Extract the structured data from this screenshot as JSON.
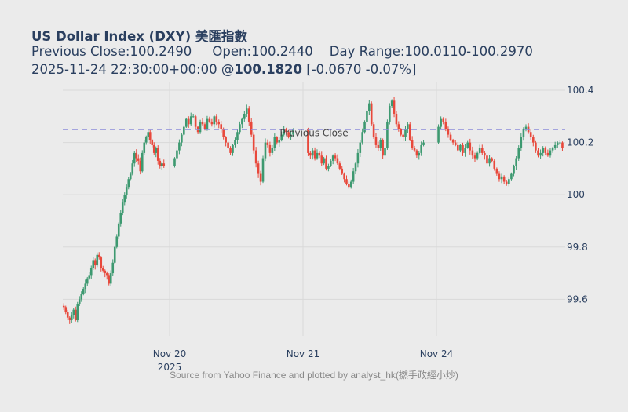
{
  "header": {
    "title": "US Dollar Index (DXY) 美匯指數",
    "stats": "Previous Close:100.2490     Open:100.2440    Day Range:100.0110-100.2970",
    "quote_prefix": "2025-11-24 22:30:00+00:00 @",
    "quote_price": "100.1820",
    "quote_change": " [-0.0670 -0.07%]"
  },
  "chart_data": {
    "type": "candlestick",
    "title": "US Dollar Index (DXY) 美匯指數",
    "ylim": [
      99.46,
      100.43
    ],
    "y_ticks": [
      {
        "value": 99.6,
        "label": "99.6"
      },
      {
        "value": 99.8,
        "label": "99.8"
      },
      {
        "value": 100.0,
        "label": "100"
      },
      {
        "value": 100.2,
        "label": "100.2"
      },
      {
        "value": 100.4,
        "label": "100.4"
      }
    ],
    "x_ticks": [
      {
        "label": "Nov 20",
        "sublabel": "2025"
      },
      {
        "label": "Nov 21",
        "sublabel": ""
      },
      {
        "label": "Nov 24",
        "sublabel": ""
      }
    ],
    "previous_close": {
      "value": 100.249,
      "label": "Previous Close"
    },
    "up_color": "#3d9970",
    "down_color": "#e8483b",
    "source_note": "Source from Yahoo Finance and plotted by analyst_hk(撚手政經小炒)",
    "segments": [
      {
        "close": [
          99.57,
          99.55,
          99.53,
          99.52,
          99.54,
          99.56,
          99.52,
          99.58,
          99.6,
          99.62,
          99.64,
          99.66,
          99.68,
          99.69,
          99.72,
          99.75,
          99.73,
          99.77,
          99.76,
          99.72,
          99.71,
          99.7,
          99.69,
          99.66,
          99.7,
          99.74,
          99.8,
          99.84,
          99.89,
          99.93,
          99.97,
          100.0,
          100.03,
          100.06,
          100.08,
          100.12,
          100.16,
          100.14,
          100.13,
          100.09,
          100.16,
          100.2,
          100.22,
          100.24,
          100.21,
          100.19,
          100.16,
          100.18,
          100.13,
          100.11,
          100.12,
          100.11
        ]
      },
      {
        "close": [
          100.14,
          100.17,
          100.2,
          100.23,
          100.26,
          100.29,
          100.27,
          100.3,
          100.3,
          100.26,
          100.24,
          100.28,
          100.27,
          100.25,
          100.29,
          100.28,
          100.27,
          100.3,
          100.28,
          100.27,
          100.25,
          100.22,
          100.2,
          100.18,
          100.16,
          100.19,
          100.21,
          100.24,
          100.27,
          100.29,
          100.31,
          100.33,
          100.28,
          100.23,
          100.17,
          100.12,
          100.08,
          100.05,
          100.14,
          100.2,
          100.19,
          100.16,
          100.18,
          100.22,
          100.2,
          100.21,
          100.23,
          100.25,
          100.24,
          100.22,
          100.23,
          100.25
        ]
      },
      {
        "close": [
          100.16,
          100.15,
          100.17,
          100.14,
          100.16,
          100.15,
          100.12,
          100.14,
          100.1,
          100.11,
          100.13,
          100.15,
          100.14,
          100.12,
          100.1,
          100.08,
          100.06,
          100.04,
          100.03,
          100.05,
          100.09,
          100.12,
          100.16,
          100.2,
          100.24,
          100.28,
          100.32,
          100.35,
          100.27,
          100.22,
          100.19,
          100.18,
          100.21,
          100.15,
          100.18,
          100.28,
          100.34,
          100.36,
          100.31,
          100.27,
          100.25,
          100.23,
          100.22,
          100.25,
          100.27,
          100.21,
          100.18,
          100.17,
          100.15,
          100.16,
          100.19,
          100.2
        ]
      },
      {
        "close": [
          100.26,
          100.29,
          100.28,
          100.25,
          100.23,
          100.21,
          100.2,
          100.19,
          100.17,
          100.19,
          100.16,
          100.18,
          100.2,
          100.17,
          100.15,
          100.14,
          100.16,
          100.18,
          100.16,
          100.15,
          100.12,
          100.14,
          100.13,
          100.1,
          100.08,
          100.06,
          100.07,
          100.05,
          100.04,
          100.06,
          100.08,
          100.11,
          100.14,
          100.18,
          100.22,
          100.25,
          100.26,
          100.24,
          100.22,
          100.2,
          100.17,
          100.15,
          100.16,
          100.18,
          100.16,
          100.15,
          100.17,
          100.18,
          100.19,
          100.2,
          100.2,
          100.18
        ]
      }
    ]
  }
}
